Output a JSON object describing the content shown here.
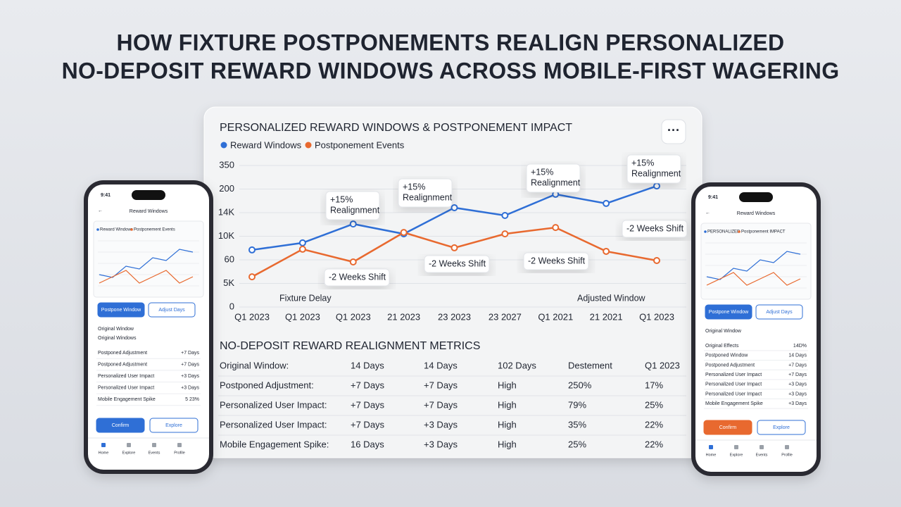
{
  "header": {
    "title_line1": "HOW FIXTURE POSTPONEMENTS REALIGN PERSONALIZED",
    "title_line2": "NO-DEPOSIT REWARD WINDOWS ACROSS MOBILE-FIRST WAGERING"
  },
  "chart_data": {
    "type": "line",
    "title": "PERSONALIZED REWARD WINDOWS & POSTPONEMENT IMPACT",
    "categories": [
      "Q1 2023",
      "Q1 2023",
      "Q1 2023",
      "21 2023",
      "23 2023",
      "23 2027",
      "Q1 2021",
      "21 2021",
      "Q1 2023"
    ],
    "series": [
      {
        "name": "Reward Windows",
        "color": "#2f6fd6",
        "values": [
          2.42,
          2.72,
          3.52,
          3.1,
          4.21,
          3.88,
          4.78,
          4.39,
          5.13
        ]
      },
      {
        "name": "Postponement Events",
        "color": "#e8692f",
        "values": [
          1.28,
          2.45,
          1.91,
          3.16,
          2.51,
          3.1,
          3.37,
          2.36,
          1.97
        ]
      }
    ],
    "ylim": [
      0,
      6
    ],
    "yticks": [
      0,
      {
        "value": 1,
        "label": "5K"
      },
      {
        "value": 2,
        "label": "60"
      },
      {
        "value": 3,
        "label": "10K"
      },
      {
        "value": 4,
        "label": "14K"
      },
      {
        "value": 5,
        "label": "200"
      },
      {
        "value": 6,
        "label": "350"
      }
    ],
    "grid": true,
    "annotations": [
      [
        "+15%",
        "Realignment"
      ],
      [
        "+15%",
        "Realignment"
      ],
      [
        "+15%",
        "Realignment"
      ],
      [
        "+15%",
        "Realignment"
      ],
      [
        "-2 Weeks Shift"
      ],
      [
        "-2 Weeks Shift"
      ],
      [
        "-2 Weeks Shift"
      ],
      [
        "-2 Weeks Shift"
      ],
      [
        "Fixture Delay"
      ],
      [
        "Adjusted Window"
      ]
    ]
  },
  "table": {
    "title": "NO-DEPOSIT REWARD REALIGNMENT METRICS",
    "rows": [
      [
        "Original Window:",
        "14 Days",
        "14 Days",
        "102 Days",
        "Destement",
        "Q1 2023"
      ],
      [
        "Postponed Adjustment:",
        "+7 Days",
        "+7 Days",
        "High",
        "250%",
        "17%"
      ],
      [
        "Personalized User Impact:",
        "+7 Days",
        "+7 Days",
        "High",
        "79%",
        "25%"
      ],
      [
        "Personalized User Impact:",
        "+7 Days",
        "+3 Days",
        "High",
        "35%",
        "22%"
      ],
      [
        "Mobile Engagement Spike:",
        "16 Days",
        "+3 Days",
        "High",
        "25%",
        "22%"
      ]
    ]
  },
  "phones": [
    {
      "time": "9:41",
      "title": "Reward Windows",
      "legend": [
        "Reward Windows",
        "Postponement Events"
      ],
      "buttons": [
        "Postpone Window",
        "Adjust Days"
      ],
      "section": [
        "Original Window",
        "Original Windows"
      ],
      "items": [
        [
          "Postponed Adjustment",
          "+7 Days"
        ],
        [
          "Postponed Adjustment",
          "+7 Days"
        ],
        [
          "Personalized User Impact",
          "+3 Days"
        ],
        [
          "Personalized User Impact",
          "+3 Days"
        ],
        [
          "Mobile Engagement Spike",
          "5 23%"
        ]
      ],
      "actions": [
        "Confirm",
        "Explore"
      ],
      "nav": [
        "Home",
        "Explore",
        "Events",
        "Profile"
      ]
    },
    {
      "time": "9:41",
      "title": "Reward Windows",
      "legend": [
        "PERSONALIZED",
        "Postponement IMPACT"
      ],
      "buttons": [
        "Postpone Window",
        "Adjust Days"
      ],
      "section": [
        "Original Window"
      ],
      "items": [
        [
          "Original Effects",
          "14D%"
        ],
        [
          "Postponed Window",
          "14 Days"
        ],
        [
          "Postponed Adjustment",
          "+7 Days"
        ],
        [
          "Personalized User Impact",
          "+7 Days"
        ],
        [
          "Personalized User Impact",
          "+3 Days"
        ],
        [
          "Personalized User Impact",
          "+3 Days"
        ],
        [
          "Mobile Engagement Spike",
          "+3 Days"
        ]
      ],
      "actions": [
        "Confirm",
        "Explore"
      ],
      "nav": [
        "Home",
        "Explore",
        "Events",
        "Profile"
      ]
    }
  ]
}
